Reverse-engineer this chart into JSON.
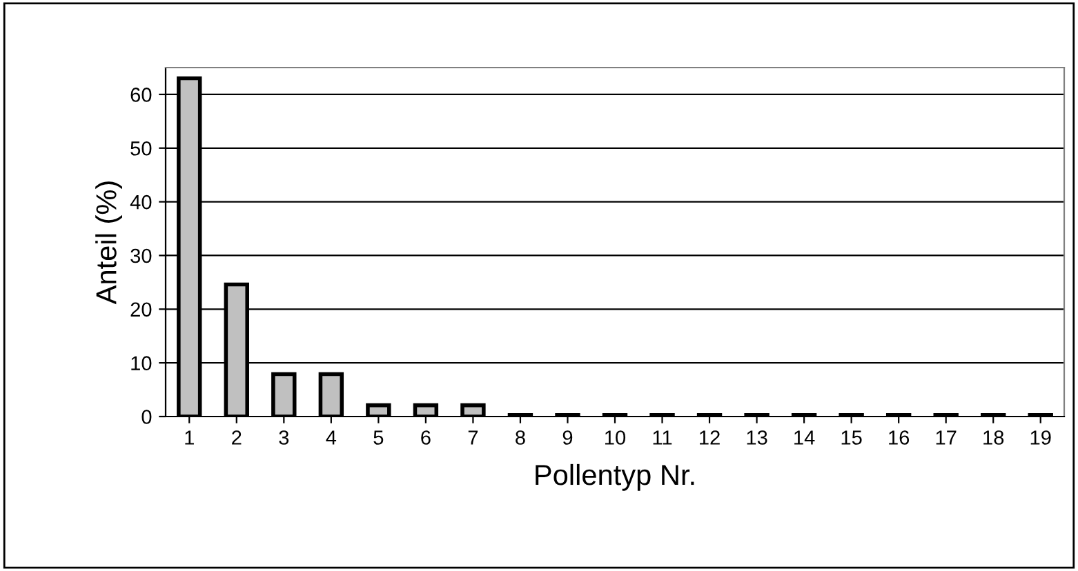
{
  "chart_data": {
    "type": "bar",
    "categories": [
      "1",
      "2",
      "3",
      "4",
      "5",
      "6",
      "7",
      "8",
      "9",
      "10",
      "11",
      "12",
      "13",
      "14",
      "15",
      "16",
      "17",
      "18",
      "19"
    ],
    "values": [
      63,
      24.6,
      7.9,
      7.9,
      2.1,
      2.1,
      2.1,
      0.3,
      0.3,
      0.3,
      0.3,
      0.3,
      0.3,
      0.3,
      0.3,
      0.3,
      0.3,
      0.3,
      0.3
    ],
    "color": "#c0c0c0",
    "xlabel": "Pollentyp Nr.",
    "ylabel": "Anteil (%)",
    "ylim": [
      0,
      65
    ],
    "yticks": [
      0,
      10,
      20,
      30,
      40,
      50,
      60
    ],
    "grid": "y",
    "legend": false
  }
}
